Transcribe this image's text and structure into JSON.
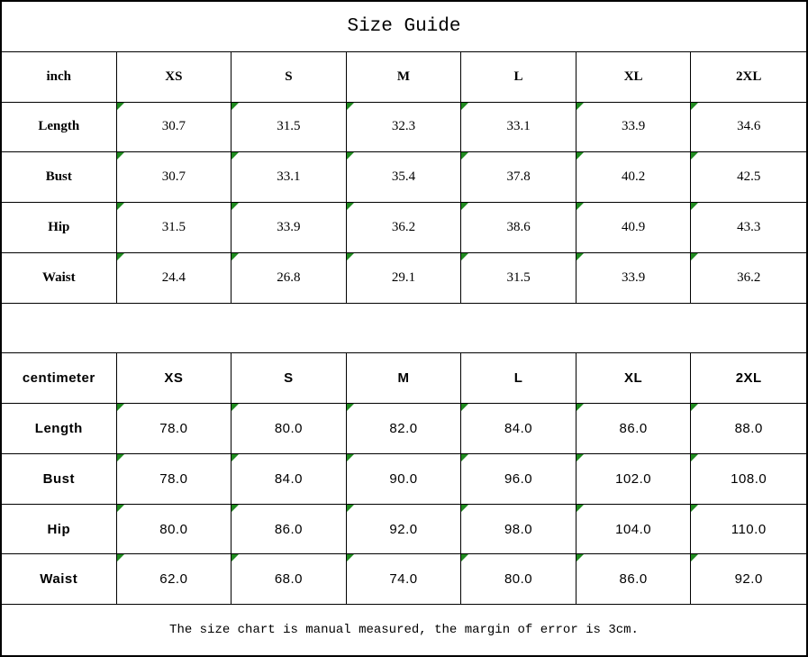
{
  "title": "Size Guide",
  "colors": {
    "marker_green": "#1f8a1f",
    "border_black": "#000000",
    "background": "#ffffff"
  },
  "inch_table": {
    "unit_label": "inch",
    "columns": [
      "XS",
      "S",
      "M",
      "L",
      "XL",
      "2XL"
    ],
    "rows": [
      {
        "label": "Length",
        "values": [
          "30.7",
          "31.5",
          "32.3",
          "33.1",
          "33.9",
          "34.6"
        ]
      },
      {
        "label": "Bust",
        "values": [
          "30.7",
          "33.1",
          "35.4",
          "37.8",
          "40.2",
          "42.5"
        ]
      },
      {
        "label": "Hip",
        "values": [
          "31.5",
          "33.9",
          "36.2",
          "38.6",
          "40.9",
          "43.3"
        ]
      },
      {
        "label": "Waist",
        "values": [
          "24.4",
          "26.8",
          "29.1",
          "31.5",
          "33.9",
          "36.2"
        ]
      }
    ]
  },
  "cm_table": {
    "unit_label": "centimeter",
    "columns": [
      "XS",
      "S",
      "M",
      "L",
      "XL",
      "2XL"
    ],
    "rows": [
      {
        "label": "Length",
        "values": [
          "78.0",
          "80.0",
          "82.0",
          "84.0",
          "86.0",
          "88.0"
        ]
      },
      {
        "label": "Bust",
        "values": [
          "78.0",
          "84.0",
          "90.0",
          "96.0",
          "102.0",
          "108.0"
        ]
      },
      {
        "label": "Hip",
        "values": [
          "80.0",
          "86.0",
          "92.0",
          "98.0",
          "104.0",
          "110.0"
        ]
      },
      {
        "label": "Waist",
        "values": [
          "62.0",
          "68.0",
          "74.0",
          "80.0",
          "86.0",
          "92.0"
        ]
      }
    ]
  },
  "footer": {
    "note": "The size chart is manual measured, the margin of error is 3cm."
  }
}
